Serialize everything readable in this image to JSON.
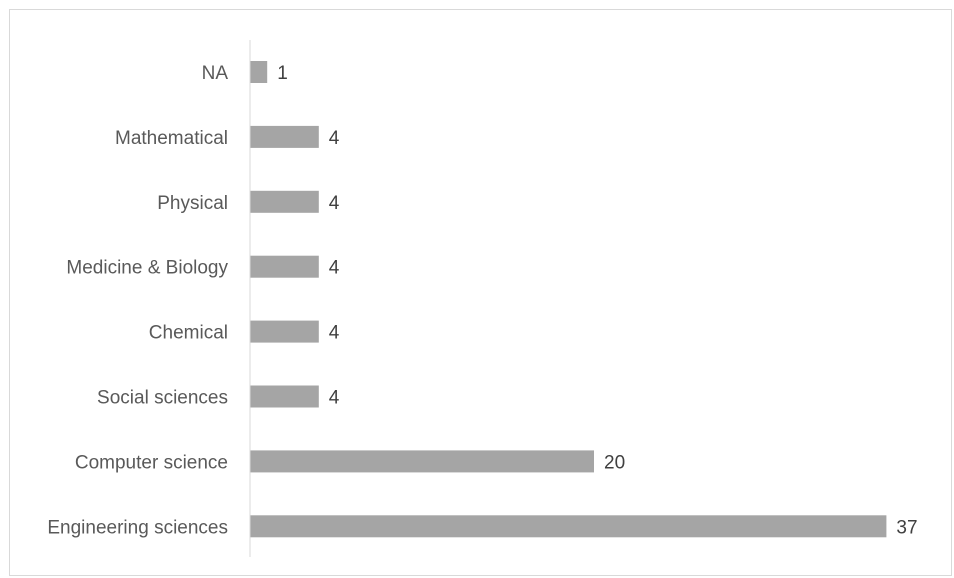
{
  "chart_data": {
    "type": "bar",
    "orientation": "horizontal",
    "title": "",
    "xlabel": "",
    "ylabel": "",
    "categories": [
      "NA",
      "Mathematical",
      "Physical",
      "Medicine & Biology",
      "Chemical",
      "Social sciences",
      "Computer science",
      "Engineering sciences"
    ],
    "values": [
      1,
      4,
      4,
      4,
      4,
      4,
      20,
      37
    ],
    "data_labels": [
      "1",
      "4",
      "4",
      "4",
      "4",
      "4",
      "20",
      "37"
    ],
    "xlim": [
      0,
      37
    ],
    "grid": false,
    "legend": "none",
    "bar_color": "#a5a5a5",
    "axis_color": "#d9d9d9"
  }
}
